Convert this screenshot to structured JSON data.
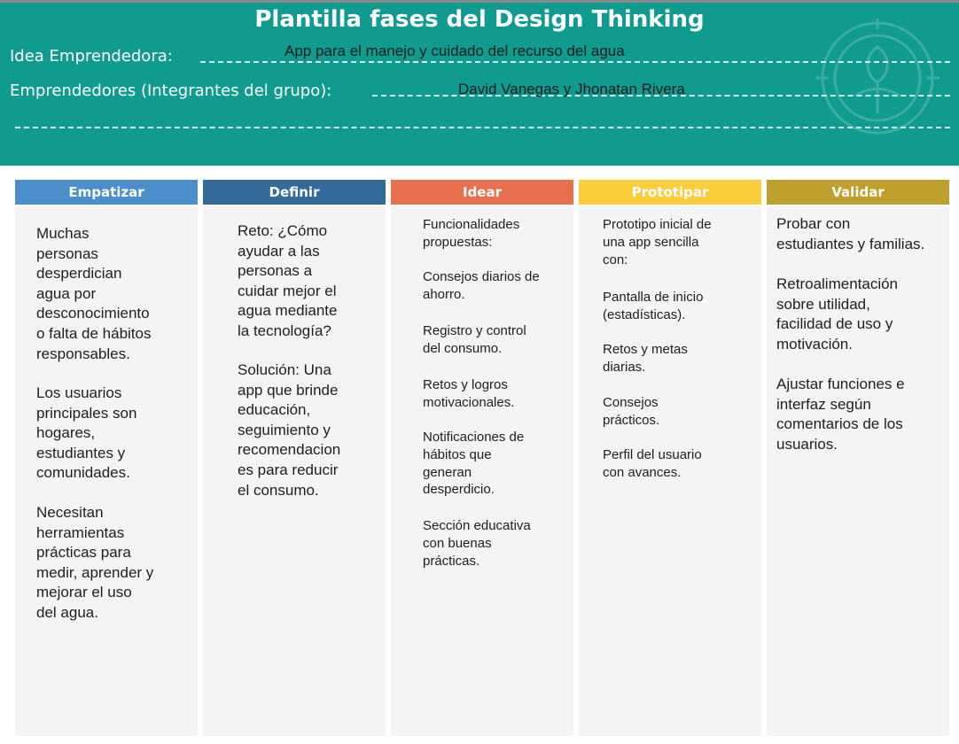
{
  "header": {
    "title": "Plantilla fases del Design Thinking",
    "idea_label": "Idea Emprendedora:",
    "idea_value": "App para el manejo y cuidado del recurso del agua",
    "team_label": "Emprendedores (Integrantes del grupo):",
    "team_value": "David Vanegas y Jhonatan Rivera"
  },
  "colors": {
    "header_bg": "#109b8f",
    "empatizar": "#4a8ecb",
    "definir": "#336a9a",
    "idear": "#e9704f",
    "prototipar": "#f9cd3b",
    "validar": "#c0a02c"
  },
  "columns": [
    {
      "name": "Empatizar",
      "paragraphs": [
        "Muchas\npersonas\ndesperdician\nagua por\ndesconocimiento\no falta de hábitos\nresponsables.",
        "Los usuarios\nprincipales son\nhogares,\nestudiantes y\ncomunidades.",
        "Necesitan\nherramientas\nprácticas para\nmedir, aprender y\nmejorar el uso\ndel agua."
      ]
    },
    {
      "name": "Definir",
      "paragraphs": [
        "Reto: ¿Cómo\nayudar a las\npersonas a\ncuidar mejor el\nagua mediante\nla tecnología?",
        "Solución: Una\napp que brinde\neducación,\nseguimiento y\nrecomendacion\nes para reducir\nel consumo."
      ]
    },
    {
      "name": "Idear",
      "paragraphs": [
        "Funcionalidades\npropuestas:",
        "Consejos diarios de\nahorro.",
        "Registro y control\ndel consumo.",
        "Retos y logros\nmotivacionales.",
        "Notificaciones de\nhábitos que\ngeneran\ndesperdicio.",
        "Sección educativa\ncon buenas\nprácticas."
      ]
    },
    {
      "name": "Prototipar",
      "paragraphs": [
        "Prototipo inicial de\nuna app sencilla\ncon:",
        "Pantalla de inicio\n(estadísticas).",
        "Retos y metas\ndiarias.",
        "Consejos\nprácticos.",
        "Perfil del usuario\ncon avances."
      ]
    },
    {
      "name": "Validar",
      "paragraphs": [
        "Probar con\nestudiantes y familias.",
        "Retroalimentación\nsobre utilidad,\nfacilidad de uso y\nmotivación.",
        "Ajustar funciones e\ninterfaz según\ncomentarios de los\nusuarios."
      ]
    }
  ]
}
